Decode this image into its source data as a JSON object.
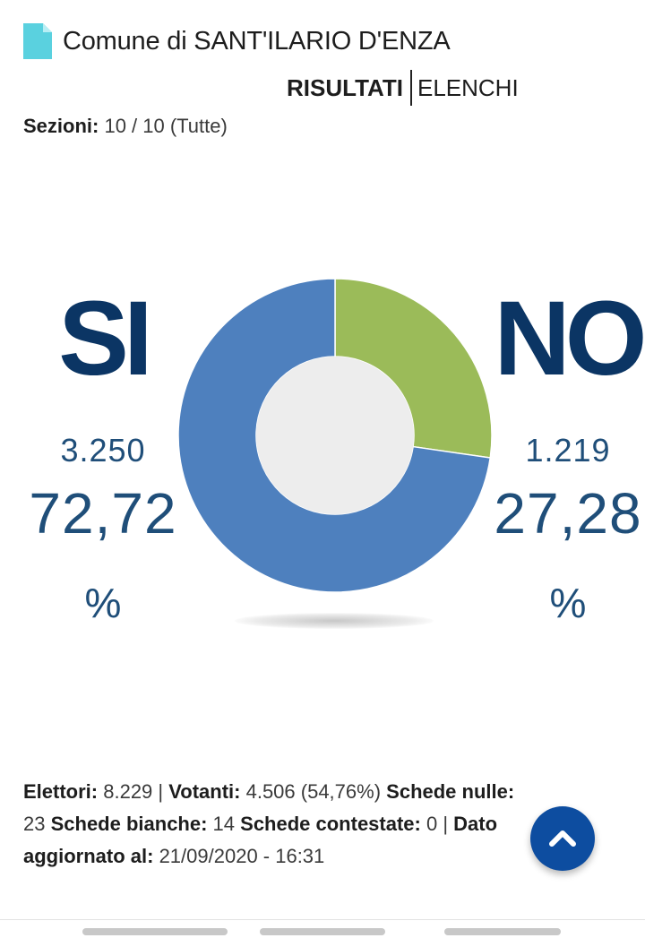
{
  "header": {
    "title": "Comune di SANT'ILARIO D'ENZA",
    "icon": "document-icon",
    "icon_color": "#5ad1df"
  },
  "tabs": {
    "active": "RISULTATI",
    "inactive": "ELENCHI"
  },
  "sezioni": {
    "label": "Sezioni:",
    "value": "10 / 10 (Tutte)"
  },
  "si": {
    "label": "SI",
    "votes": "3.250",
    "percent": "72,72",
    "percent_sign": "%",
    "color": "#4e80be"
  },
  "no": {
    "label": "NO",
    "votes": "1.219",
    "percent": "27,28",
    "percent_sign": "%",
    "color": "#9bbb59"
  },
  "chart_data": {
    "type": "pie",
    "categories": [
      "SI",
      "NO"
    ],
    "values": [
      72.72,
      27.28
    ],
    "colors": [
      "#4e80be",
      "#9bbb59"
    ]
  },
  "footer": {
    "elettori_label": "Elettori:",
    "elettori_value": " 8.229 | ",
    "votanti_label": "Votanti:",
    "votanti_value": " 4.506 (54,76%) ",
    "nulle_label": "Schede nulle:",
    "nulle_value": " 23 ",
    "bianche_label": "Schede bianche:",
    "bianche_value": " 14 ",
    "contestate_label": "Schede contestate:",
    "contestate_value": " 0 | ",
    "aggiornato_label": "Dato aggiornato al:",
    "aggiornato_value": " 21/09/2020 - 16:31"
  },
  "fab": {
    "icon": "chevron-up-icon",
    "color": "#0d4da0"
  }
}
